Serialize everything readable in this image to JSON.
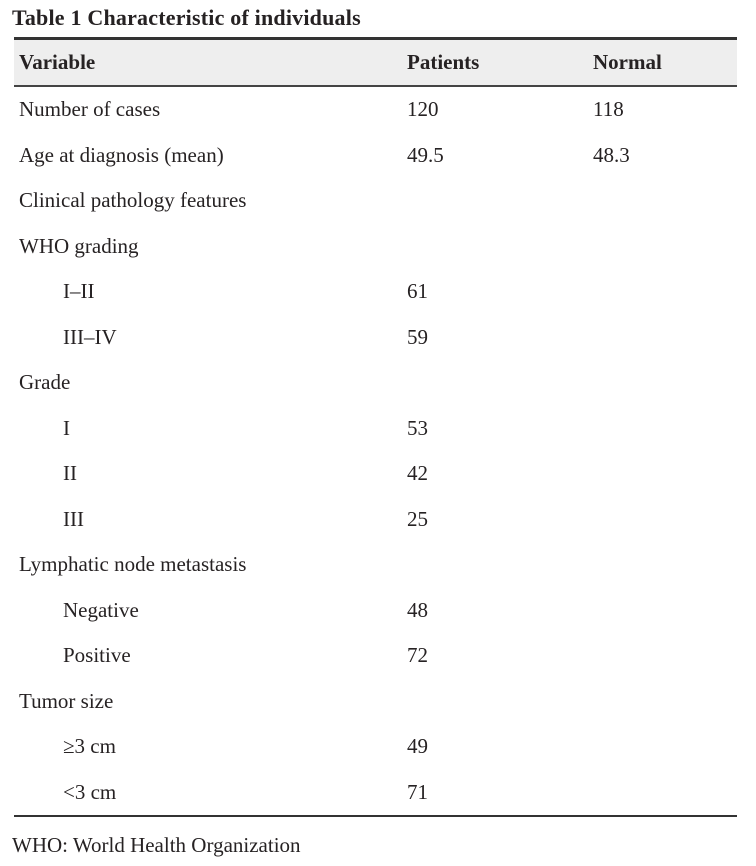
{
  "table": {
    "title": "Table 1 Characteristic of individuals",
    "columns": [
      "Variable",
      "Patients",
      "Normal"
    ],
    "rows": [
      {
        "label": "Number of cases",
        "indent": false,
        "patients": "120",
        "normal": "118"
      },
      {
        "label": "Age at diagnosis (mean)",
        "indent": false,
        "patients": "49.5",
        "normal": "48.3"
      },
      {
        "label": "Clinical pathology features",
        "indent": false,
        "patients": "",
        "normal": ""
      },
      {
        "label": "WHO grading",
        "indent": false,
        "patients": "",
        "normal": ""
      },
      {
        "label": "I–II",
        "indent": true,
        "patients": "61",
        "normal": ""
      },
      {
        "label": "III–IV",
        "indent": true,
        "patients": "59",
        "normal": ""
      },
      {
        "label": "Grade",
        "indent": false,
        "patients": "",
        "normal": ""
      },
      {
        "label": "I",
        "indent": true,
        "patients": "53",
        "normal": ""
      },
      {
        "label": "II",
        "indent": true,
        "patients": "42",
        "normal": ""
      },
      {
        "label": "III",
        "indent": true,
        "patients": "25",
        "normal": ""
      },
      {
        "label": "Lymphatic node metastasis",
        "indent": false,
        "patients": "",
        "normal": ""
      },
      {
        "label": "Negative",
        "indent": true,
        "patients": "48",
        "normal": ""
      },
      {
        "label": "Positive",
        "indent": true,
        "patients": "72",
        "normal": ""
      },
      {
        "label": "Tumor size",
        "indent": false,
        "patients": "",
        "normal": ""
      },
      {
        "label": "≥3 cm",
        "indent": true,
        "patients": "49",
        "normal": ""
      },
      {
        "label": "<3 cm",
        "indent": true,
        "patients": "71",
        "normal": ""
      }
    ],
    "footnote": "WHO: World Health Organization",
    "colors": {
      "header_background": "#eeeeee",
      "rule": "#333333",
      "text": "#262223"
    }
  }
}
